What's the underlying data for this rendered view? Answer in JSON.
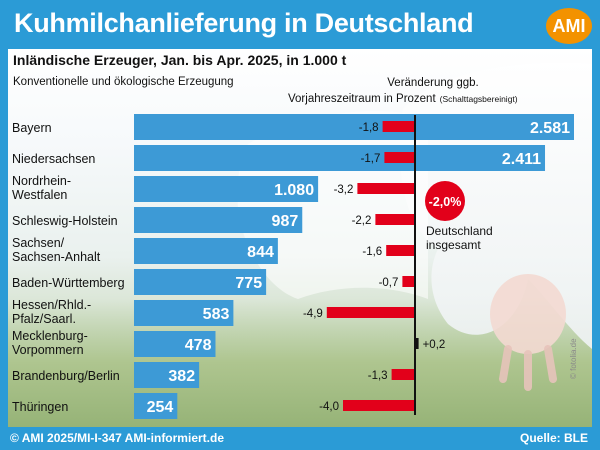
{
  "header": {
    "title": "Kuhmilchanlieferung in Deutschland",
    "logo": "AMI"
  },
  "footer": {
    "left": "© AMI 2025/MI-I-347 AMI-informiert.de",
    "right": "Quelle: BLE"
  },
  "watermark": "© fotolia.de",
  "colors": {
    "frame": "#2b9bd6",
    "bar": "#3d9ad6",
    "change": "#e2001a",
    "logo": "#f39200"
  },
  "chart_data": {
    "type": "bar",
    "title": "Inländische Erzeuger, Jan. bis Apr. 2025, in 1.000 t",
    "subtitle": "Konventionelle und ökologische Erzeugung",
    "change_label_line1": "Veränderung ggb.",
    "change_label_line2": "Vorjahreszeitraum in Prozent",
    "change_label_note": "(Schalttagsbereinigt)",
    "categories": [
      [
        "Bayern"
      ],
      [
        "Niedersachsen"
      ],
      [
        "Nordrhein-",
        "Westfalen"
      ],
      [
        "Schleswig-Holstein"
      ],
      [
        "Sachsen/",
        "Sachsen-Anhalt"
      ],
      [
        "Baden-Württemberg"
      ],
      [
        "Hessen/Rhld.-",
        "Pfalz/Saarl."
      ],
      [
        "Mecklenburg-",
        "Vorpommern"
      ],
      [
        "Brandenburg/Berlin"
      ],
      [
        "Thüringen"
      ]
    ],
    "series": [
      {
        "values": [
          2581,
          2411,
          1080,
          987,
          844,
          775,
          583,
          478,
          382,
          254
        ],
        "labels": [
          "2.581",
          "2.411",
          "1.080",
          "987",
          "844",
          "775",
          "583",
          "478",
          "382",
          "254"
        ]
      },
      {
        "values": [
          -1.8,
          -1.7,
          -3.2,
          -2.2,
          -1.6,
          -0.7,
          -4.9,
          0.2,
          -1.3,
          -4.0
        ],
        "labels": [
          "-1,8",
          "-1,7",
          "-3,2",
          "-2,2",
          "-1,6",
          "-0,7",
          "-4,9",
          "+0,2",
          "-1,3",
          "-4,0"
        ]
      }
    ],
    "total": {
      "value": -2.0,
      "label": "-2,0%",
      "text_line1": "Deutschland",
      "text_line2": "insgesamt"
    }
  }
}
